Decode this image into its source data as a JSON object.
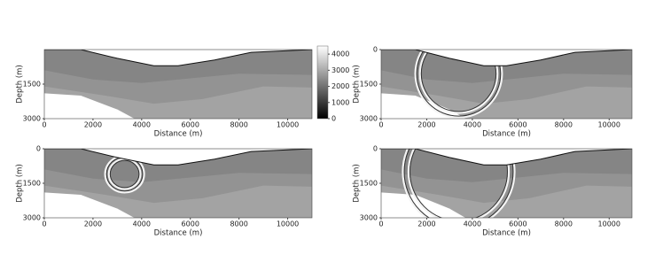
{
  "chart_data": [
    {
      "type": "section",
      "xlabel": "Distance (m)",
      "ylabel": "Depth (m)",
      "xlim": [
        0,
        11000
      ],
      "xticks": [
        0,
        2000,
        4000,
        6000,
        8000,
        10000
      ],
      "ylim": [
        0,
        3000
      ],
      "yticks": [
        1500,
        3000
      ],
      "colorbar": {
        "lim": [
          0,
          4500
        ],
        "ticks": [
          0,
          1000,
          2000,
          3000,
          4000
        ]
      }
    },
    {
      "type": "section",
      "xlabel": "Distance (m)",
      "ylabel": "Depth (m)",
      "xlim": [
        0,
        11000
      ],
      "xticks": [
        0,
        2000,
        4000,
        6000,
        8000,
        10000
      ],
      "ylim": [
        0,
        3000
      ],
      "yticks": [
        0,
        1500,
        3000
      ]
    },
    {
      "type": "section",
      "xlabel": "Distance (m)",
      "ylabel": "Depth (m)",
      "xlim": [
        0,
        11000
      ],
      "xticks": [
        0,
        2000,
        4000,
        6000,
        8000,
        10000
      ],
      "ylim": [
        0,
        3000
      ],
      "yticks": [
        0,
        1500,
        3000
      ]
    },
    {
      "type": "section",
      "xlabel": "Distance (m)",
      "ylabel": "Depth (m)",
      "xlim": [
        0,
        11000
      ],
      "xticks": [
        0,
        2000,
        4000,
        6000,
        8000,
        10000
      ],
      "ylim": [
        0,
        3000
      ],
      "yticks": [
        0,
        1500,
        3000
      ]
    }
  ]
}
